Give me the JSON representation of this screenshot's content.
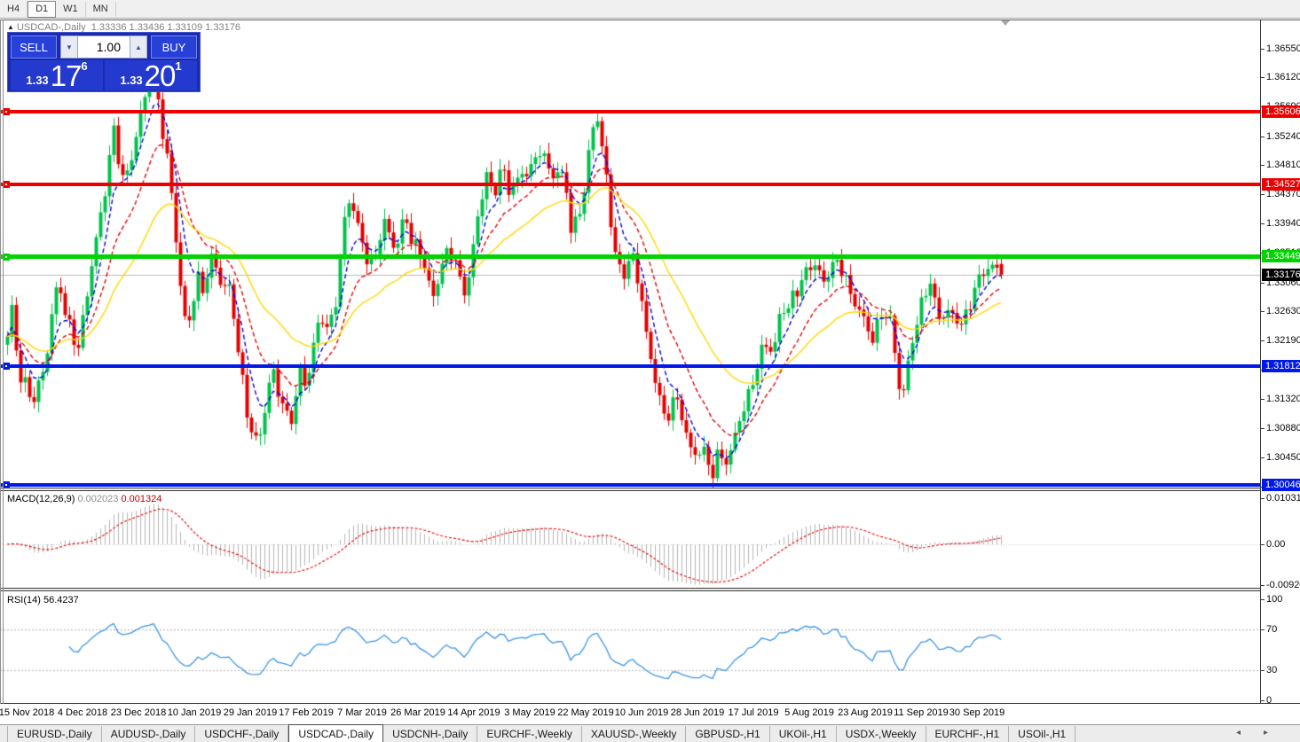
{
  "toolbar": {
    "timeframes": [
      {
        "label": "H4",
        "active": false
      },
      {
        "label": "D1",
        "active": true
      },
      {
        "label": "W1",
        "active": false
      },
      {
        "label": "MN",
        "active": false
      }
    ]
  },
  "chart": {
    "title": {
      "marker": "▲",
      "symbol": "USDCAD-,Daily",
      "ohlc_text": "1.33336 1.33436 1.33109 1.33176"
    },
    "ohlc": {
      "open": 1.33336,
      "high": 1.33436,
      "low": 1.33109,
      "close": 1.33176
    },
    "trade_panel": {
      "sell_label": "SELL",
      "buy_label": "BUY",
      "volume": "1.00",
      "spin_down": "▼",
      "spin_up": "▲",
      "sell_price_small": "1.33",
      "sell_price_big": "17",
      "sell_price_sup": "6",
      "buy_price_small": "1.33",
      "buy_price_big": "20",
      "buy_price_sup": "1"
    },
    "price_axis": {
      "ticks": [
        "1.36550",
        "1.36120",
        "1.35690",
        "1.35240",
        "1.34810",
        "1.34370",
        "1.33940",
        "1.33510",
        "1.33060",
        "1.32630",
        "1.32190",
        "1.31760",
        "1.31320",
        "1.30880",
        "1.30450",
        "1.30020"
      ]
    },
    "hlines": [
      {
        "price": 1.35606,
        "label": "1.35606",
        "color": "#ee0000",
        "thickness": 4
      },
      {
        "price": 1.34527,
        "label": "1.34527",
        "color": "#ee0000",
        "thickness": 4
      },
      {
        "price": 1.33449,
        "label": "1.33449",
        "color": "#00d300",
        "thickness": 5
      },
      {
        "price": 1.31812,
        "label": "1.31812",
        "color": "#0019e6",
        "thickness": 4
      },
      {
        "price": 1.30046,
        "label": "1.30046",
        "color": "#0019e6",
        "thickness": 4
      }
    ],
    "current_price": {
      "value": 1.33176,
      "label": "1.33176",
      "line_color": "#bbbbbb",
      "label_bg": "#000000"
    },
    "candles": {
      "count": 225,
      "up_color": "#00c24c",
      "down_color": "#e60000"
    },
    "moving_averages": [
      {
        "period": 6,
        "color": "#0000dd",
        "dashed": true
      },
      {
        "period": 14,
        "color": "#e60000",
        "dashed": true
      },
      {
        "period": 32,
        "color": "#ffd800",
        "dashed": false
      }
    ],
    "chart_data": {
      "type": "candlestick",
      "note": "approximate close path sampled from pixels, x in px / price",
      "anchors": [
        [
          8,
          1.322
        ],
        [
          14,
          1.3272
        ],
        [
          20,
          1.3175
        ],
        [
          28,
          1.3158
        ],
        [
          36,
          1.3135
        ],
        [
          44,
          1.3152
        ],
        [
          52,
          1.319
        ],
        [
          58,
          1.3252
        ],
        [
          66,
          1.331
        ],
        [
          72,
          1.3268
        ],
        [
          80,
          1.3235
        ],
        [
          88,
          1.3215
        ],
        [
          96,
          1.327
        ],
        [
          104,
          1.3338
        ],
        [
          112,
          1.3392
        ],
        [
          120,
          1.346
        ],
        [
          127,
          1.3542
        ],
        [
          133,
          1.35
        ],
        [
          140,
          1.3455
        ],
        [
          148,
          1.3492
        ],
        [
          156,
          1.354
        ],
        [
          164,
          1.358
        ],
        [
          171,
          1.3628
        ],
        [
          176,
          1.3596
        ],
        [
          182,
          1.3545
        ],
        [
          190,
          1.348
        ],
        [
          197,
          1.3385
        ],
        [
          204,
          1.3285
        ],
        [
          210,
          1.3222
        ],
        [
          216,
          1.327
        ],
        [
          222,
          1.3312
        ],
        [
          228,
          1.3296
        ],
        [
          234,
          1.3332
        ],
        [
          240,
          1.3352
        ],
        [
          246,
          1.3312
        ],
        [
          252,
          1.33
        ],
        [
          258,
          1.329
        ],
        [
          264,
          1.3246
        ],
        [
          270,
          1.318
        ],
        [
          277,
          1.312
        ],
        [
          284,
          1.3085
        ],
        [
          290,
          1.307
        ],
        [
          296,
          1.3102
        ],
        [
          302,
          1.315
        ],
        [
          308,
          1.3165
        ],
        [
          314,
          1.3136
        ],
        [
          320,
          1.311
        ],
        [
          326,
          1.3096
        ],
        [
          332,
          1.313
        ],
        [
          338,
          1.318
        ],
        [
          344,
          1.3156
        ],
        [
          350,
          1.319
        ],
        [
          356,
          1.323
        ],
        [
          362,
          1.3256
        ],
        [
          368,
          1.3226
        ],
        [
          374,
          1.3256
        ],
        [
          380,
          1.3292
        ],
        [
          386,
          1.339
        ],
        [
          392,
          1.3436
        ],
        [
          398,
          1.342
        ],
        [
          404,
          1.338
        ],
        [
          410,
          1.3356
        ],
        [
          416,
          1.332
        ],
        [
          422,
          1.334
        ],
        [
          428,
          1.3376
        ],
        [
          434,
          1.34
        ],
        [
          440,
          1.3376
        ],
        [
          446,
          1.336
        ],
        [
          452,
          1.339
        ],
        [
          458,
          1.34
        ],
        [
          464,
          1.3356
        ],
        [
          470,
          1.335
        ],
        [
          476,
          1.334
        ],
        [
          482,
          1.3306
        ],
        [
          488,
          1.329
        ],
        [
          494,
          1.332
        ],
        [
          500,
          1.3346
        ],
        [
          506,
          1.3356
        ],
        [
          512,
          1.334
        ],
        [
          518,
          1.33
        ],
        [
          524,
          1.329
        ],
        [
          530,
          1.332
        ],
        [
          536,
          1.3396
        ],
        [
          542,
          1.3436
        ],
        [
          548,
          1.347
        ],
        [
          554,
          1.3446
        ],
        [
          560,
          1.345
        ],
        [
          566,
          1.3476
        ],
        [
          572,
          1.344
        ],
        [
          578,
          1.3446
        ],
        [
          584,
          1.346
        ],
        [
          590,
          1.348
        ],
        [
          596,
          1.347
        ],
        [
          602,
          1.3496
        ],
        [
          608,
          1.3506
        ],
        [
          614,
          1.348
        ],
        [
          620,
          1.347
        ],
        [
          626,
          1.3456
        ],
        [
          632,
          1.347
        ],
        [
          638,
          1.3446
        ],
        [
          644,
          1.3376
        ],
        [
          650,
          1.341
        ],
        [
          656,
          1.343
        ],
        [
          662,
          1.348
        ],
        [
          668,
          1.354
        ],
        [
          672,
          1.3556
        ],
        [
          676,
          1.351
        ],
        [
          682,
          1.3476
        ],
        [
          688,
          1.3396
        ],
        [
          694,
          1.3346
        ],
        [
          700,
          1.332
        ],
        [
          706,
          1.3336
        ],
        [
          712,
          1.3346
        ],
        [
          718,
          1.331
        ],
        [
          724,
          1.3266
        ],
        [
          730,
          1.32
        ],
        [
          736,
          1.3176
        ],
        [
          742,
          1.314
        ],
        [
          748,
          1.311
        ],
        [
          754,
          1.312
        ],
        [
          760,
          1.3136
        ],
        [
          766,
          1.312
        ],
        [
          772,
          1.308
        ],
        [
          778,
          1.305
        ],
        [
          784,
          1.3046
        ],
        [
          790,
          1.306
        ],
        [
          796,
          1.3046
        ],
        [
          802,
          1.3026
        ],
        [
          808,
          1.305
        ],
        [
          814,
          1.3046
        ],
        [
          820,
          1.3036
        ],
        [
          826,
          1.306
        ],
        [
          832,
          1.3096
        ],
        [
          838,
          1.3116
        ],
        [
          844,
          1.314
        ],
        [
          850,
          1.3176
        ],
        [
          856,
          1.32
        ],
        [
          862,
          1.322
        ],
        [
          868,
          1.3206
        ],
        [
          874,
          1.321
        ],
        [
          880,
          1.327
        ],
        [
          886,
          1.3256
        ],
        [
          892,
          1.328
        ],
        [
          898,
          1.33
        ],
        [
          904,
          1.3316
        ],
        [
          910,
          1.333
        ],
        [
          916,
          1.334
        ],
        [
          922,
          1.332
        ],
        [
          928,
          1.33
        ],
        [
          934,
          1.332
        ],
        [
          940,
          1.333
        ],
        [
          946,
          1.3336
        ],
        [
          952,
          1.332
        ],
        [
          958,
          1.329
        ],
        [
          964,
          1.328
        ],
        [
          970,
          1.326
        ],
        [
          976,
          1.3236
        ],
        [
          982,
          1.3216
        ],
        [
          988,
          1.3236
        ],
        [
          994,
          1.3256
        ],
        [
          1000,
          1.327
        ],
        [
          1006,
          1.323
        ],
        [
          1012,
          1.316
        ],
        [
          1018,
          1.3146
        ],
        [
          1024,
          1.319
        ],
        [
          1030,
          1.323
        ],
        [
          1036,
          1.3256
        ],
        [
          1042,
          1.3286
        ],
        [
          1048,
          1.331
        ],
        [
          1054,
          1.327
        ],
        [
          1060,
          1.3256
        ],
        [
          1066,
          1.327
        ],
        [
          1072,
          1.3256
        ],
        [
          1078,
          1.325
        ],
        [
          1084,
          1.3236
        ],
        [
          1090,
          1.3256
        ],
        [
          1096,
          1.329
        ],
        [
          1102,
          1.331
        ],
        [
          1108,
          1.3326
        ],
        [
          1114,
          1.3336
        ],
        [
          1120,
          1.333
        ],
        [
          1128,
          1.33176
        ]
      ]
    }
  },
  "macd": {
    "name": "MACD(12,26,9)",
    "value_main": "0.002023",
    "value_signal": "0.001324",
    "params": {
      "fast": 12,
      "slow": 26,
      "signal": 9
    },
    "axis_ticks": [
      "0.010311",
      "0.00",
      "-0.009203"
    ],
    "axis_values": [
      0.010311,
      0,
      -0.009203
    ],
    "histogram_color": "#b5b5b5",
    "signal_color": "#e60000"
  },
  "rsi": {
    "name": "RSI(14)",
    "value": "56.4237",
    "period": 14,
    "axis_ticks": [
      "100",
      "70",
      "30",
      "0"
    ],
    "axis_values": [
      100,
      70,
      30,
      0
    ],
    "levels": [
      70,
      30
    ],
    "line_color": "#3c95e8"
  },
  "date_axis": {
    "labels": [
      "15 Nov 2018",
      "4 Dec 2018",
      "23 Dec 2018",
      "10 Jan 2019",
      "29 Jan 2019",
      "17 Feb 2019",
      "7 Mar 2019",
      "26 Mar 2019",
      "14 Apr 2019",
      "3 May 2019",
      "22 May 2019",
      "10 Jun 2019",
      "28 Jun 2019",
      "17 Jul 2019",
      "5 Aug 2019",
      "23 Aug 2019",
      "11 Sep 2019",
      "30 Sep 2019"
    ]
  },
  "tabs": {
    "items": [
      {
        "label": "EURUSD-,Daily",
        "active": false
      },
      {
        "label": "AUDUSD-,Daily",
        "active": false
      },
      {
        "label": "USDCHF-,Daily",
        "active": false
      },
      {
        "label": "USDCAD-,Daily",
        "active": true
      },
      {
        "label": "USDCNH-,Daily",
        "active": false
      },
      {
        "label": "EURCHF-,Weekly",
        "active": false
      },
      {
        "label": "XAUUSD-,Weekly",
        "active": false
      },
      {
        "label": "GBPUSD-,H1",
        "active": false
      },
      {
        "label": "UKOil-,H1",
        "active": false
      },
      {
        "label": "USDX-,Weekly",
        "active": false
      },
      {
        "label": "EURCHF-,H1",
        "active": false
      },
      {
        "label": "USOil-,H1",
        "active": false
      }
    ],
    "scroll_left": "◂",
    "scroll_right": "▸"
  }
}
